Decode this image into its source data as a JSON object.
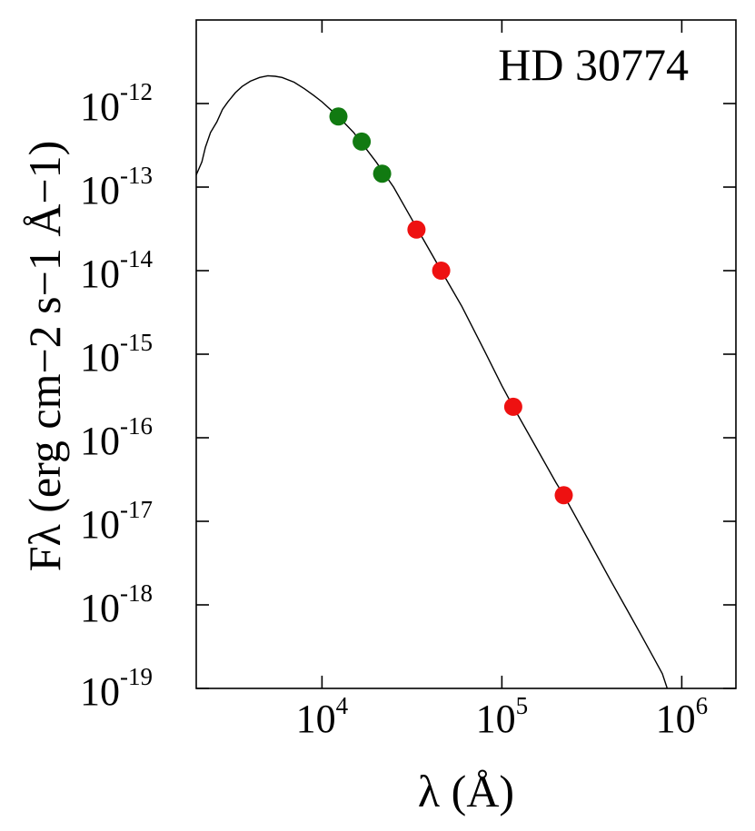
{
  "chart_data": {
    "type": "scatter",
    "title": "",
    "annotation": "HD 30774",
    "xlabel": "λ (Å)",
    "ylabel": "Fλ (erg cm−2 s−1 Å−1)",
    "xscale": "log",
    "yscale": "log",
    "xlim": [
      2000,
      2000000
    ],
    "ylim": [
      1e-19,
      1e-11
    ],
    "x_ticks": [
      {
        "value": 10000,
        "base": "10",
        "exp": "4"
      },
      {
        "value": 100000,
        "base": "10",
        "exp": "5"
      },
      {
        "value": 1000000,
        "base": "10",
        "exp": "6"
      }
    ],
    "y_ticks": [
      {
        "value": 1e-12,
        "base": "10",
        "exp": "-12"
      },
      {
        "value": 1e-13,
        "base": "10",
        "exp": "-13"
      },
      {
        "value": 1e-14,
        "base": "10",
        "exp": "-14"
      },
      {
        "value": 1e-15,
        "base": "10",
        "exp": "-15"
      },
      {
        "value": 1e-16,
        "base": "10",
        "exp": "-16"
      },
      {
        "value": 1e-17,
        "base": "10",
        "exp": "-17"
      },
      {
        "value": 1e-18,
        "base": "10",
        "exp": "-18"
      },
      {
        "value": 1e-19,
        "base": "10",
        "exp": "-19"
      }
    ],
    "grid": false,
    "series": [
      {
        "color": "#117a11",
        "points": [
          [
            12350,
            7e-13
          ],
          [
            16620,
            3.5e-13
          ],
          [
            21590,
            1.45e-13
          ]
        ]
      },
      {
        "color": "#ee1111",
        "points": [
          [
            33500,
            3.1e-14
          ],
          [
            46000,
            1e-14
          ],
          [
            115600,
            2.35e-16
          ],
          [
            220800,
            2.05e-17
          ]
        ]
      }
    ],
    "model": {
      "color": "#000000",
      "points": [
        [
          2000,
          1.4e-13
        ],
        [
          2150,
          2e-13
        ],
        [
          2250,
          3e-13
        ],
        [
          2400,
          4.5e-13
        ],
        [
          2600,
          6e-13
        ],
        [
          2800,
          8.5e-13
        ],
        [
          3000,
          1.05e-12
        ],
        [
          3300,
          1.35e-12
        ],
        [
          3600,
          1.6e-12
        ],
        [
          4000,
          1.85e-12
        ],
        [
          4500,
          2.05e-12
        ],
        [
          5000,
          2.15e-12
        ],
        [
          5500,
          2.12e-12
        ],
        [
          6000,
          2.05e-12
        ],
        [
          7000,
          1.8e-12
        ],
        [
          8000,
          1.5e-12
        ],
        [
          9000,
          1.25e-12
        ],
        [
          10000,
          1.05e-12
        ],
        [
          12300,
          7e-13
        ],
        [
          15000,
          4.5e-13
        ],
        [
          20000,
          2e-13
        ],
        [
          25000,
          1e-13
        ],
        [
          30000,
          5e-14
        ],
        [
          35000,
          2.8e-14
        ],
        [
          46000,
          1e-14
        ],
        [
          60000,
          3.7e-15
        ],
        [
          80000,
          1.1e-15
        ],
        [
          100000,
          4.2e-16
        ],
        [
          115600,
          2.35e-16
        ],
        [
          150000,
          8.7e-17
        ],
        [
          200000,
          2.9e-17
        ],
        [
          220800,
          2.05e-17
        ],
        [
          300000,
          6.2e-18
        ],
        [
          400000,
          2e-18
        ],
        [
          500000,
          8.5e-19
        ],
        [
          600000,
          4.2e-19
        ],
        [
          700000,
          2.3e-19
        ],
        [
          780000,
          1.5e-19
        ],
        [
          830000,
          1e-19
        ]
      ]
    }
  }
}
